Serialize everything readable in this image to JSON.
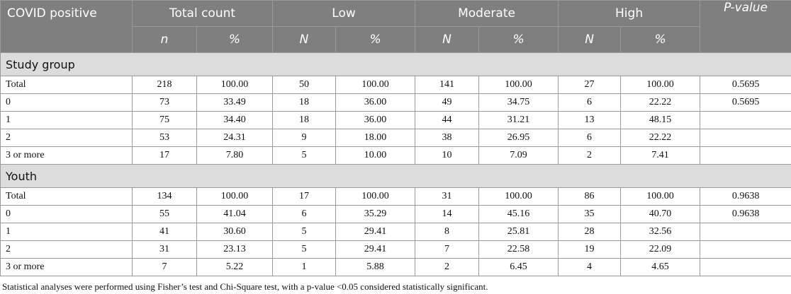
{
  "headers": {
    "row_label": "COVID positive",
    "groups": [
      "Total count",
      "Low",
      "Moderate",
      "High"
    ],
    "p_value": "P-value",
    "sub": [
      "n",
      "%",
      "N",
      "%",
      "N",
      "%",
      "N",
      "%"
    ]
  },
  "sections": [
    {
      "title": "Study group",
      "rows": [
        {
          "label": "Total",
          "cells": [
            "218",
            "100.00",
            "50",
            "100.00",
            "141",
            "100.00",
            "27",
            "100.00"
          ],
          "p": "0.5695"
        },
        {
          "label": "0",
          "cells": [
            "73",
            "33.49",
            "18",
            "36.00",
            "49",
            "34.75",
            "6",
            "22.22"
          ],
          "p": "0.5695"
        },
        {
          "label": "1",
          "cells": [
            "75",
            "34.40",
            "18",
            "36.00",
            "44",
            "31.21",
            "13",
            "48.15"
          ],
          "p": ""
        },
        {
          "label": "2",
          "cells": [
            "53",
            "24.31",
            "9",
            "18.00",
            "38",
            "26.95",
            "6",
            "22.22"
          ],
          "p": ""
        },
        {
          "label": "3 or more",
          "cells": [
            "17",
            "7.80",
            "5",
            "10.00",
            "10",
            "7.09",
            "2",
            "7.41"
          ],
          "p": ""
        }
      ]
    },
    {
      "title": "Youth",
      "rows": [
        {
          "label": "Total",
          "cells": [
            "134",
            "100.00",
            "17",
            "100.00",
            "31",
            "100.00",
            "86",
            "100.00"
          ],
          "p": "0.9638"
        },
        {
          "label": "0",
          "cells": [
            "55",
            "41.04",
            "6",
            "35.29",
            "14",
            "45.16",
            "35",
            "40.70"
          ],
          "p": "0.9638"
        },
        {
          "label": "1",
          "cells": [
            "41",
            "30.60",
            "5",
            "29.41",
            "8",
            "25.81",
            "28",
            "32.56"
          ],
          "p": ""
        },
        {
          "label": "2",
          "cells": [
            "31",
            "23.13",
            "5",
            "29.41",
            "7",
            "22.58",
            "19",
            "22.09"
          ],
          "p": ""
        },
        {
          "label": "3 or more",
          "cells": [
            "7",
            "5.22",
            "1",
            "5.88",
            "2",
            "6.45",
            "4",
            "4.65"
          ],
          "p": ""
        }
      ]
    }
  ],
  "footnote": "Statistical analyses were performed using Fisher’s test and Chi-Square test, with a p-value <0.05 considered statistically significant."
}
